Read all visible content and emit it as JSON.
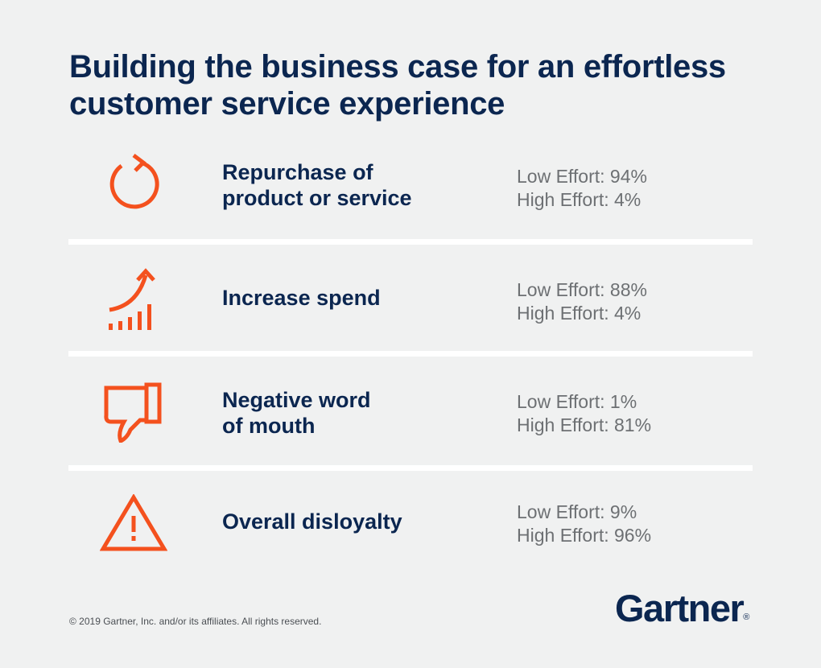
{
  "title": "Building the business case for an effortless customer service experience",
  "rows": [
    {
      "icon": "repurchase-cycle-icon",
      "label_lines": [
        "Repurchase of",
        "product or service"
      ],
      "low_effort": "Low Effort: 94%",
      "high_effort": "High Effort: 4%"
    },
    {
      "icon": "growth-chart-icon",
      "label_lines": [
        "Increase spend"
      ],
      "low_effort": "Low Effort: 88%",
      "high_effort": "High Effort: 4%"
    },
    {
      "icon": "thumbs-down-icon",
      "label_lines": [
        "Negative word",
        "of mouth"
      ],
      "low_effort": "Low Effort: 1%",
      "high_effort": "High Effort: 81%"
    },
    {
      "icon": "warning-triangle-icon",
      "label_lines": [
        "Overall disloyalty"
      ],
      "low_effort": "Low Effort: 9%",
      "high_effort": "High Effort: 96%"
    }
  ],
  "footer": {
    "copyright": "© 2019 Gartner, Inc. and/or its affiliates. All rights reserved.",
    "logo_text": "Gartner",
    "logo_mark": "®"
  },
  "colors": {
    "background": "#f0f1f1",
    "heading": "#0b2650",
    "accent": "#f4511e",
    "stats_text": "#6d7073"
  }
}
